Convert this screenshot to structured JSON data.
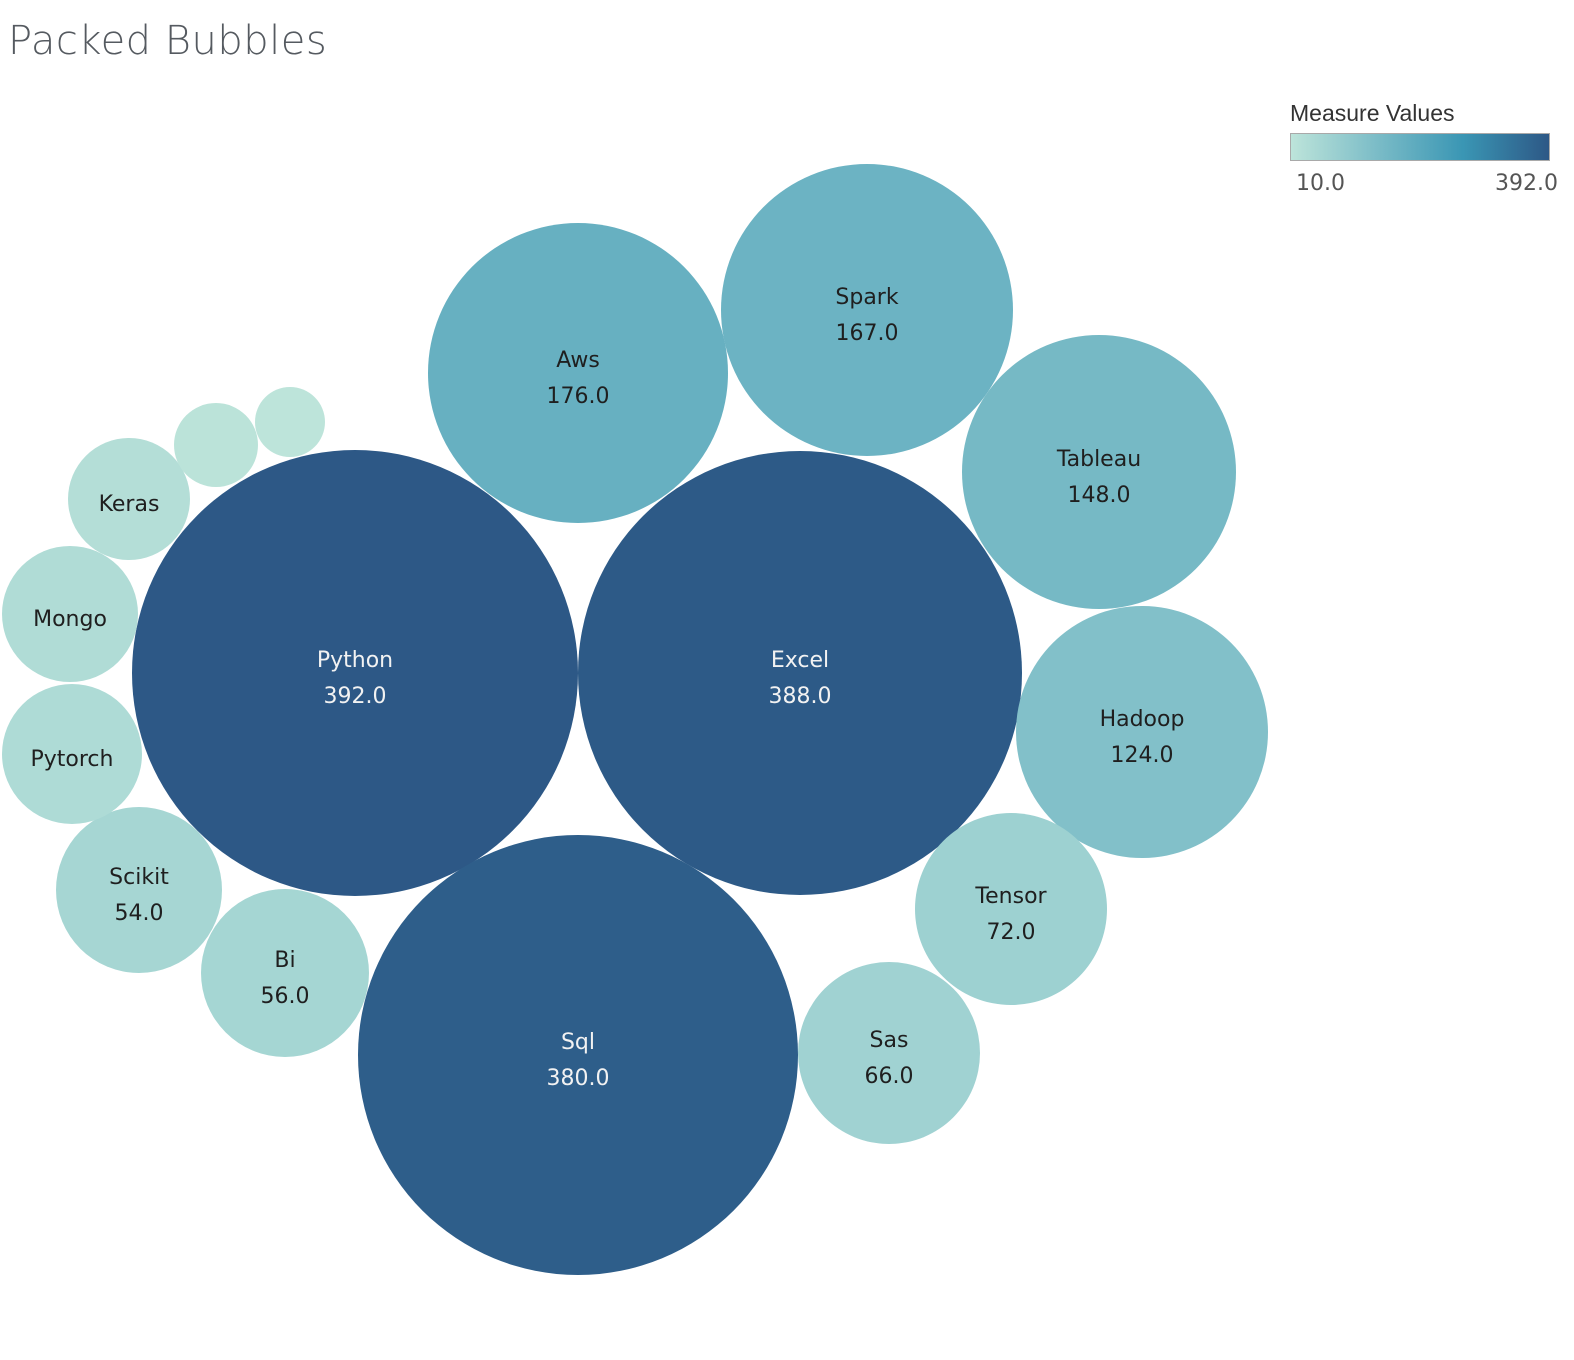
{
  "chart_data": {
    "type": "bubble",
    "title": "Packed Bubbles",
    "legend": {
      "title": "Measure Values",
      "min_label": "10.0",
      "max_label": "392.0",
      "min": 10,
      "max": 392,
      "placement": "top-right",
      "colors": [
        "#bde4da",
        "#7bbcc7",
        "#3a96b4",
        "#2d5886"
      ]
    },
    "bubbles": [
      {
        "label": "Python",
        "value": 392,
        "value_label": "392.0"
      },
      {
        "label": "Excel",
        "value": 388,
        "value_label": "388.0"
      },
      {
        "label": "Sql",
        "value": 380,
        "value_label": "380.0"
      },
      {
        "label": "Aws",
        "value": 176,
        "value_label": "176.0"
      },
      {
        "label": "Spark",
        "value": 167,
        "value_label": "167.0"
      },
      {
        "label": "Tableau",
        "value": 148,
        "value_label": "148.0"
      },
      {
        "label": "Hadoop",
        "value": 124,
        "value_label": "124.0"
      },
      {
        "label": "Tensor",
        "value": 72,
        "value_label": "72.0"
      },
      {
        "label": "Sas",
        "value": 66,
        "value_label": "66.0"
      },
      {
        "label": "Bi",
        "value": 56,
        "value_label": "56.0"
      },
      {
        "label": "Scikit",
        "value": 54,
        "value_label": "54.0"
      },
      {
        "label": "Pytorch",
        "value": 38,
        "value_label": ""
      },
      {
        "label": "Mongo",
        "value": 36,
        "value_label": ""
      },
      {
        "label": "Keras",
        "value": 28,
        "value_label": ""
      },
      {
        "label": "",
        "value": 14,
        "value_label": ""
      },
      {
        "label": "",
        "value": 10,
        "value_label": ""
      }
    ]
  }
}
